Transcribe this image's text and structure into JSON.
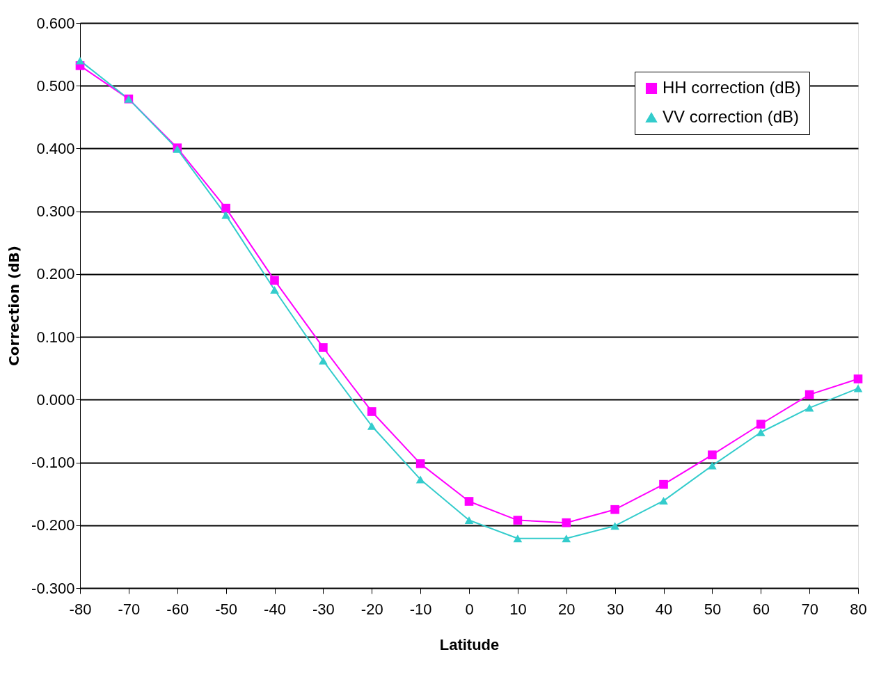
{
  "chart_data": {
    "type": "line",
    "xlabel": "Latitude",
    "ylabel": "Correction (dB)",
    "x": [
      -80,
      -70,
      -60,
      -50,
      -40,
      -30,
      -20,
      -10,
      0,
      10,
      20,
      30,
      40,
      50,
      60,
      70,
      80
    ],
    "series": [
      {
        "name": "HH correction (dB)",
        "color": "#ff00ff",
        "marker": "square",
        "values": [
          0.532,
          0.479,
          0.401,
          0.305,
          0.19,
          0.083,
          -0.019,
          -0.102,
          -0.162,
          -0.192,
          -0.196,
          -0.175,
          -0.135,
          -0.088,
          -0.039,
          0.008,
          0.033
        ]
      },
      {
        "name": "VV correction (dB)",
        "color": "#33cccc",
        "marker": "triangle",
        "values": [
          0.54,
          0.479,
          0.399,
          0.294,
          0.175,
          0.062,
          -0.042,
          -0.127,
          -0.192,
          -0.221,
          -0.221,
          -0.201,
          -0.161,
          -0.105,
          -0.052,
          -0.013,
          0.018
        ]
      }
    ],
    "xlim": [
      -80,
      80
    ],
    "xticks": [
      -80,
      -70,
      -60,
      -50,
      -40,
      -30,
      -20,
      -10,
      0,
      10,
      20,
      30,
      40,
      50,
      60,
      70,
      80
    ],
    "ylim": [
      -0.3,
      0.6
    ],
    "yticks": [
      {
        "value": -0.3,
        "label": "-0.300"
      },
      {
        "value": -0.2,
        "label": "-0.200"
      },
      {
        "value": -0.1,
        "label": "-0.100"
      },
      {
        "value": 0,
        "label": "0.000"
      },
      {
        "value": 0.1,
        "label": "0.100"
      },
      {
        "value": 0.2,
        "label": "0.200"
      },
      {
        "value": 0.3,
        "label": "0.300"
      },
      {
        "value": 0.4,
        "label": "0.400"
      },
      {
        "value": 0.5,
        "label": "0.500"
      },
      {
        "value": 0.6,
        "label": "0.600"
      }
    ],
    "grid": "y",
    "legend": "top right",
    "line_style": "solid"
  }
}
